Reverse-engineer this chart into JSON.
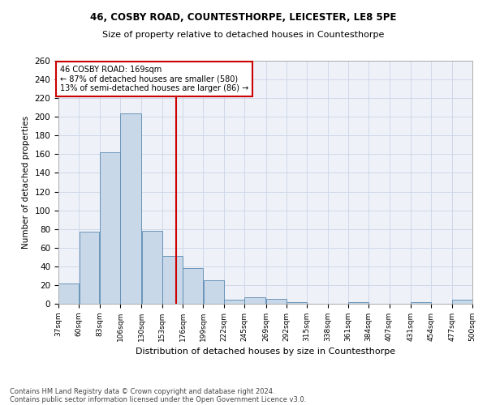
{
  "title1": "46, COSBY ROAD, COUNTESTHORPE, LEICESTER, LE8 5PE",
  "title2": "Size of property relative to detached houses in Countesthorpe",
  "xlabel": "Distribution of detached houses by size in Countesthorpe",
  "ylabel": "Number of detached properties",
  "bar_color": "#c8d8e8",
  "bar_edge_color": "#5a8ab0",
  "grid_color": "#d0d8e8",
  "background_color": "#eef2f8",
  "vline_x": 169,
  "vline_color": "#cc0000",
  "annotation_text": "46 COSBY ROAD: 169sqm\n← 87% of detached houses are smaller (580)\n13% of semi-detached houses are larger (86) →",
  "annotation_box_color": "#cc0000",
  "footer1": "Contains HM Land Registry data © Crown copyright and database right 2024.",
  "footer2": "Contains public sector information licensed under the Open Government Licence v3.0.",
  "bin_edges": [
    37,
    60,
    83,
    106,
    130,
    153,
    176,
    199,
    222,
    245,
    269,
    292,
    315,
    338,
    361,
    384,
    407,
    431,
    454,
    477,
    500
  ],
  "bar_heights": [
    22,
    77,
    162,
    204,
    78,
    51,
    38,
    25,
    4,
    7,
    5,
    2,
    0,
    0,
    2,
    0,
    0,
    2,
    0,
    4
  ],
  "ylim": [
    0,
    260
  ],
  "yticks": [
    0,
    20,
    40,
    60,
    80,
    100,
    120,
    140,
    160,
    180,
    200,
    220,
    240,
    260
  ]
}
